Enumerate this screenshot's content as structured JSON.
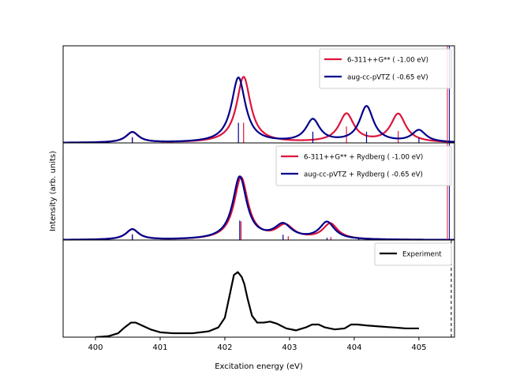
{
  "chart_data": {
    "type": "line",
    "xlabel": "Excitation energy (eV)",
    "ylabel": "Intensity (arb. units)",
    "xlim": [
      399.5,
      405.55
    ],
    "xticks": [
      400,
      401,
      402,
      403,
      404,
      405
    ],
    "grid": false,
    "panels": [
      {
        "legend_position": "top-right",
        "ylim": [
          0,
          1.3
        ],
        "series": [
          {
            "name": "6-311++G** ( -1.00 eV)",
            "color": "#dc143c",
            "peaks": [
              {
                "x": 400.57,
                "h": 0.14,
                "w": 0.12
              },
              {
                "x": 402.29,
                "h": 0.88,
                "w": 0.13
              },
              {
                "x": 403.88,
                "h": 0.38,
                "w": 0.14
              },
              {
                "x": 404.68,
                "h": 0.38,
                "w": 0.14
              }
            ],
            "sticks": [
              {
                "x": 400.57,
                "h": 0.08
              },
              {
                "x": 402.29,
                "h": 0.27
              },
              {
                "x": 403.88,
                "h": 0.22
              },
              {
                "x": 404.68,
                "h": 0.16
              }
            ]
          },
          {
            "name": "aug-cc-pVTZ ( -0.65 eV)",
            "color": "#00008b",
            "peaks": [
              {
                "x": 400.57,
                "h": 0.14,
                "w": 0.12
              },
              {
                "x": 402.21,
                "h": 0.87,
                "w": 0.13
              },
              {
                "x": 403.36,
                "h": 0.3,
                "w": 0.13
              },
              {
                "x": 404.19,
                "h": 0.48,
                "w": 0.13
              },
              {
                "x": 405.0,
                "h": 0.16,
                "w": 0.13
              }
            ],
            "sticks": [
              {
                "x": 400.57,
                "h": 0.07
              },
              {
                "x": 402.21,
                "h": 0.27
              },
              {
                "x": 403.36,
                "h": 0.15
              },
              {
                "x": 404.19,
                "h": 0.15
              },
              {
                "x": 405.0,
                "h": 0.07
              }
            ]
          }
        ],
        "vlines": [
          {
            "x": 405.44,
            "color": "#dc143c"
          },
          {
            "x": 405.47,
            "color": "#00008b"
          }
        ]
      },
      {
        "legend_position": "top-right",
        "ylim": [
          0,
          1.3
        ],
        "series": [
          {
            "name": "6-311++G** + Rydberg ( -1.00 eV)",
            "color": "#dc143c",
            "peaks": [
              {
                "x": 400.57,
                "h": 0.14,
                "w": 0.12
              },
              {
                "x": 402.25,
                "h": 0.83,
                "w": 0.13
              },
              {
                "x": 402.93,
                "h": 0.18,
                "w": 0.16
              },
              {
                "x": 403.63,
                "h": 0.21,
                "w": 0.14
              }
            ],
            "sticks": [
              {
                "x": 400.57,
                "h": 0.08
              },
              {
                "x": 402.25,
                "h": 0.25
              },
              {
                "x": 402.98,
                "h": 0.05
              },
              {
                "x": 403.64,
                "h": 0.04
              }
            ]
          },
          {
            "name": "aug-cc-pVTZ + Rydberg ( -0.65 eV)",
            "color": "#00008b",
            "peaks": [
              {
                "x": 400.57,
                "h": 0.14,
                "w": 0.12
              },
              {
                "x": 402.23,
                "h": 0.84,
                "w": 0.13
              },
              {
                "x": 402.9,
                "h": 0.19,
                "w": 0.16
              },
              {
                "x": 403.58,
                "h": 0.23,
                "w": 0.14
              }
            ],
            "sticks": [
              {
                "x": 400.57,
                "h": 0.07
              },
              {
                "x": 402.23,
                "h": 0.26
              },
              {
                "x": 402.9,
                "h": 0.07
              },
              {
                "x": 403.58,
                "h": 0.03
              },
              {
                "x": 404.07,
                "h": 0.02
              },
              {
                "x": 404.45,
                "h": 0.01
              }
            ]
          }
        ],
        "vlines": [
          {
            "x": 405.44,
            "color": "#dc143c"
          },
          {
            "x": 405.47,
            "color": "#00008b"
          }
        ]
      },
      {
        "legend_position": "top-right",
        "ylim": [
          0,
          1.0
        ],
        "series": [
          {
            "name": "Experiment",
            "color": "#000000",
            "x": [
              400.0,
              400.2,
              400.35,
              400.45,
              400.55,
              400.62,
              400.72,
              400.85,
              401.0,
              401.2,
              401.5,
              401.75,
              401.9,
              402.0,
              402.08,
              402.14,
              402.2,
              402.26,
              402.3,
              402.35,
              402.42,
              402.5,
              402.6,
              402.7,
              402.8,
              402.95,
              403.1,
              403.25,
              403.35,
              403.45,
              403.55,
              403.7,
              403.85,
              403.95,
              404.05,
              404.2,
              404.4,
              404.6,
              404.8,
              405.0
            ],
            "y": [
              0.0,
              0.01,
              0.04,
              0.1,
              0.15,
              0.15,
              0.12,
              0.08,
              0.05,
              0.04,
              0.04,
              0.06,
              0.1,
              0.2,
              0.45,
              0.64,
              0.67,
              0.62,
              0.55,
              0.4,
              0.22,
              0.15,
              0.15,
              0.16,
              0.14,
              0.09,
              0.07,
              0.1,
              0.13,
              0.13,
              0.1,
              0.08,
              0.09,
              0.13,
              0.13,
              0.12,
              0.11,
              0.1,
              0.09,
              0.09
            ]
          }
        ],
        "vlines": [
          {
            "x": 405.5,
            "color": "#000000",
            "dashed": true
          }
        ]
      }
    ]
  }
}
